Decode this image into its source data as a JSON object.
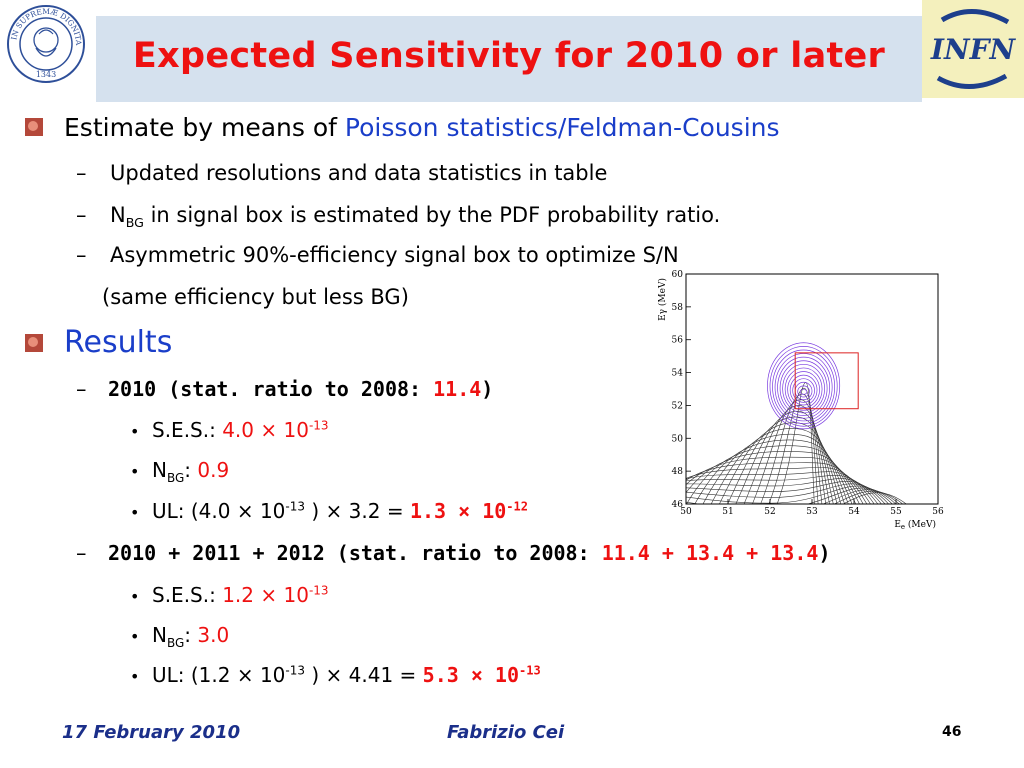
{
  "title": "Expected Sensitivity for 2010 or later",
  "logo_right": "INFN",
  "seal_text_top": "IN SUPREMÆ DIGNITATIS",
  "seal_year": "1343",
  "b1": {
    "pre": "Estimate by means of ",
    "emph": "Poisson statistics/Feldman-Cousins"
  },
  "b1_sub1": "Updated resolutions and data statistics in table",
  "b1_sub2": {
    "n": "N",
    "sub": "BG",
    "rest": " in signal box is estimated by the PDF probability ratio."
  },
  "b1_sub3": "Asymmetric 90%-efficiency signal box to optimize S/N",
  "b1_sub3b": "(same efficiency but less BG)",
  "b2": "Results",
  "r1": {
    "head": "2010 (stat. ratio to 2008: ",
    "val": "11.4",
    "close": ")"
  },
  "r1_ses": {
    "label": "S.E.S.: ",
    "val": "4.0 × 10",
    "exp": "-13"
  },
  "r1_nbg": {
    "n": "N",
    "sub": "BG",
    "colon": ": ",
    "val": "0.9"
  },
  "r1_ul": {
    "pre": "UL: (4.0 × 10",
    "exp": "-13",
    "mid": " ) × 3.2 = ",
    "val": "1.3 × 10",
    "vexp": "-12"
  },
  "r2": {
    "head": "2010 + 2011 + 2012 (stat. ratio to 2008: ",
    "val": "11.4 + 13.4 + 13.4",
    "close": ")"
  },
  "r2_ses": {
    "label": "S.E.S.: ",
    "val": "1.2 × 10",
    "exp": "-13"
  },
  "r2_nbg": {
    "n": "N",
    "sub": "BG",
    "colon": ": ",
    "val": "3.0"
  },
  "r2_ul": {
    "pre": "UL: (1.2 × 10",
    "exp": "-13",
    "mid": " ) × 4.41 = ",
    "val": "5.3 × 10",
    "vexp": "-13"
  },
  "dash": "–",
  "dot": "•",
  "footer": {
    "date": "17 February 2010",
    "author": "Fabrizio Cei",
    "page": "46"
  },
  "chart_data": {
    "type": "contour",
    "xlabel": "E",
    "xlabel_sub": "e",
    "xlabel_unit": "(MeV)",
    "ylabel": "E",
    "ylabel_greek": "γ",
    "ylabel_unit": "(MeV)",
    "xlim": [
      50,
      56
    ],
    "ylim": [
      46,
      60
    ],
    "xticks": [
      "50",
      "51",
      "52",
      "53",
      "54",
      "55",
      "56"
    ],
    "yticks": [
      "46",
      "48",
      "50",
      "52",
      "54",
      "56",
      "58",
      "60"
    ],
    "signal_peak": {
      "x": 52.8,
      "y": 52.8
    },
    "signal_box": {
      "x": [
        52.6,
        54.1
      ],
      "y": [
        51.8,
        55.2
      ]
    },
    "colors": {
      "background": "#333333",
      "signal": "#7a3ce0",
      "box": "#dd2222"
    }
  }
}
